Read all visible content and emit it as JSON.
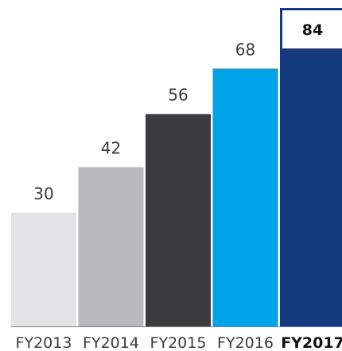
{
  "chart_data": {
    "type": "bar",
    "title": "",
    "xlabel": "",
    "ylabel": "",
    "categories": [
      "FY2013",
      "FY2014",
      "FY2015",
      "FY2016",
      "FY2017"
    ],
    "values": [
      30,
      42,
      56,
      68,
      84
    ],
    "value_labels": [
      "30",
      "42",
      "56",
      "68",
      "84"
    ],
    "ylim": [
      0,
      84
    ],
    "grid": false,
    "legend": "none",
    "bar_colors": [
      "#e3e4e6",
      "#b8b9bc",
      "#3b3b3d",
      "#00a3e6",
      "#163a7f"
    ],
    "highlight": {
      "category": "FY2017",
      "box_fill": "#ffffff",
      "border_color": "#163a7f",
      "bold_tick_label": true
    },
    "baseline_color": "#808080",
    "label_color": "#3b3b3d"
  }
}
